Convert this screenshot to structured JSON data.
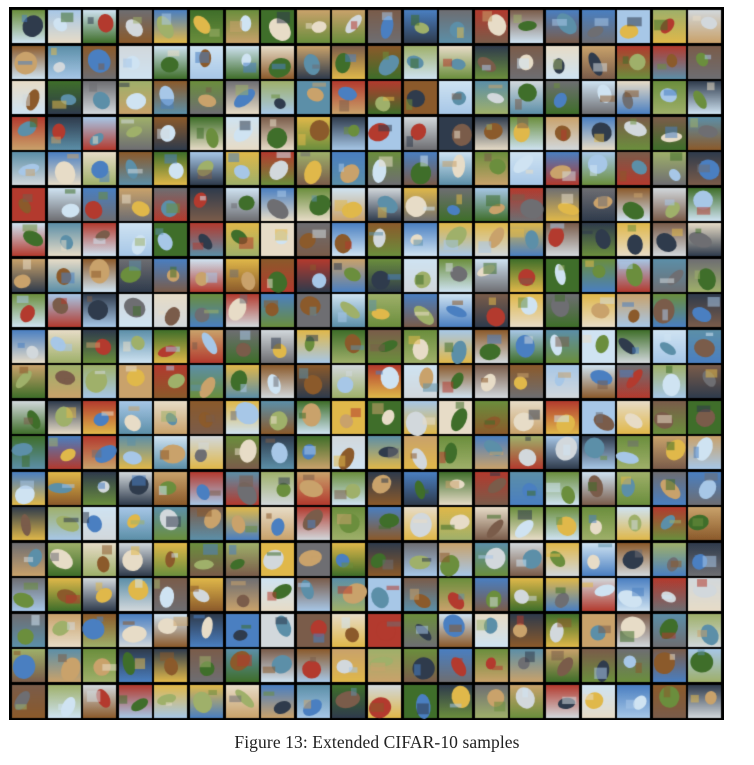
{
  "figure": {
    "caption": "Figure 13: Extended CIFAR-10 samples",
    "grid": {
      "rows": 20,
      "cols": 20
    },
    "colors": {
      "border": "#000000",
      "palette": [
        "#6b8e3d",
        "#4a7fc1",
        "#a7c7e7",
        "#8b5a2b",
        "#c9a26b",
        "#d2d8dc",
        "#3f6e2a",
        "#b33a2e",
        "#e7dcc7",
        "#6e6e72",
        "#2f3b4c",
        "#9fb06a",
        "#e0b84a",
        "#5c8fa8",
        "#7a5c4a",
        "#cfe3f2"
      ]
    }
  }
}
